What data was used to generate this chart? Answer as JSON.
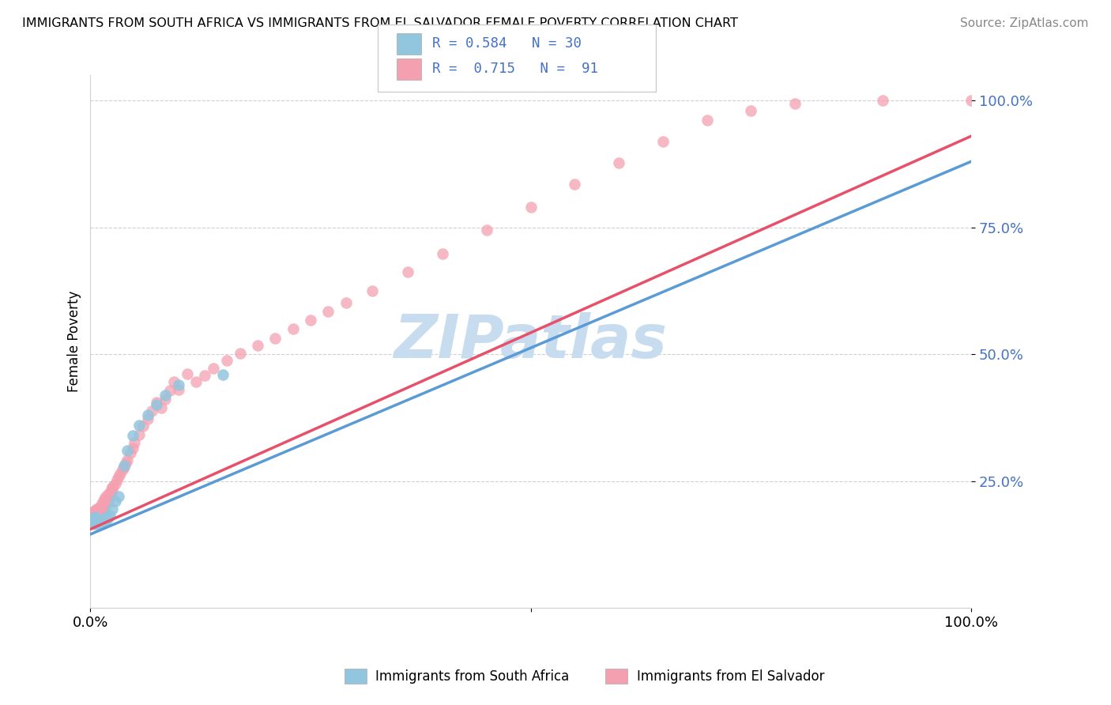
{
  "title": "IMMIGRANTS FROM SOUTH AFRICA VS IMMIGRANTS FROM EL SALVADOR FEMALE POVERTY CORRELATION CHART",
  "source": "Source: ZipAtlas.com",
  "ylabel": "Female Poverty",
  "ytick_vals": [
    0.25,
    0.5,
    0.75,
    1.0
  ],
  "legend1_label": "Immigrants from South Africa",
  "legend2_label": "Immigrants from El Salvador",
  "r1": 0.584,
  "n1": 30,
  "r2": 0.715,
  "n2": 91,
  "color1": "#92C5DE",
  "color2": "#F4A0B0",
  "line1_color": "#5B9BD5",
  "line2_color": "#E8506A",
  "watermark": "ZIPatlas",
  "watermark_color": "#C8DCF0",
  "scatter1_x": [
    0.002,
    0.003,
    0.004,
    0.005,
    0.006,
    0.007,
    0.008,
    0.009,
    0.01,
    0.011,
    0.012,
    0.013,
    0.015,
    0.016,
    0.017,
    0.018,
    0.02,
    0.022,
    0.025,
    0.028,
    0.032,
    0.038,
    0.042,
    0.048,
    0.055,
    0.065,
    0.075,
    0.085,
    0.1,
    0.15
  ],
  "scatter1_y": [
    0.175,
    0.17,
    0.165,
    0.18,
    0.175,
    0.17,
    0.165,
    0.175,
    0.168,
    0.172,
    0.17,
    0.165,
    0.175,
    0.17,
    0.178,
    0.172,
    0.178,
    0.182,
    0.195,
    0.21,
    0.22,
    0.28,
    0.31,
    0.34,
    0.36,
    0.38,
    0.4,
    0.42,
    0.44,
    0.46
  ],
  "scatter2_x": [
    0.001,
    0.002,
    0.002,
    0.003,
    0.003,
    0.004,
    0.004,
    0.004,
    0.005,
    0.005,
    0.005,
    0.006,
    0.006,
    0.007,
    0.007,
    0.007,
    0.008,
    0.008,
    0.009,
    0.009,
    0.01,
    0.01,
    0.011,
    0.011,
    0.012,
    0.012,
    0.013,
    0.013,
    0.014,
    0.015,
    0.015,
    0.016,
    0.016,
    0.017,
    0.018,
    0.018,
    0.019,
    0.02,
    0.02,
    0.021,
    0.022,
    0.023,
    0.024,
    0.025,
    0.026,
    0.028,
    0.03,
    0.032,
    0.034,
    0.036,
    0.038,
    0.04,
    0.042,
    0.045,
    0.048,
    0.05,
    0.055,
    0.06,
    0.065,
    0.07,
    0.075,
    0.08,
    0.085,
    0.09,
    0.095,
    0.1,
    0.11,
    0.12,
    0.13,
    0.14,
    0.155,
    0.17,
    0.19,
    0.21,
    0.23,
    0.25,
    0.27,
    0.29,
    0.32,
    0.36,
    0.4,
    0.45,
    0.5,
    0.55,
    0.6,
    0.65,
    0.7,
    0.75,
    0.8,
    0.9,
    1.0
  ],
  "scatter2_y": [
    0.178,
    0.175,
    0.182,
    0.17,
    0.185,
    0.168,
    0.178,
    0.19,
    0.172,
    0.183,
    0.192,
    0.17,
    0.185,
    0.175,
    0.188,
    0.195,
    0.173,
    0.19,
    0.182,
    0.195,
    0.178,
    0.198,
    0.185,
    0.2,
    0.182,
    0.198,
    0.188,
    0.205,
    0.192,
    0.195,
    0.21,
    0.2,
    0.215,
    0.205,
    0.21,
    0.22,
    0.215,
    0.208,
    0.225,
    0.218,
    0.222,
    0.228,
    0.235,
    0.232,
    0.24,
    0.245,
    0.252,
    0.258,
    0.265,
    0.272,
    0.278,
    0.285,
    0.292,
    0.305,
    0.315,
    0.325,
    0.342,
    0.358,
    0.372,
    0.388,
    0.405,
    0.395,
    0.412,
    0.428,
    0.445,
    0.43,
    0.462,
    0.445,
    0.458,
    0.472,
    0.488,
    0.502,
    0.518,
    0.532,
    0.55,
    0.568,
    0.585,
    0.602,
    0.625,
    0.662,
    0.698,
    0.745,
    0.79,
    0.835,
    0.878,
    0.92,
    0.962,
    0.98,
    0.995,
    1.0,
    1.0
  ]
}
